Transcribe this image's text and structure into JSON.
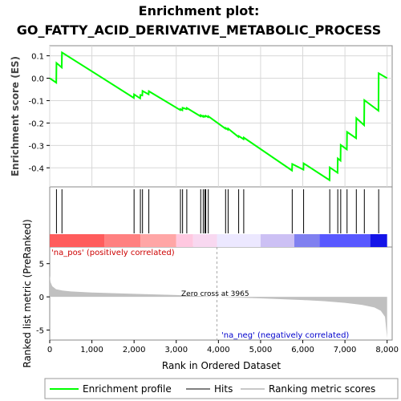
{
  "title_line1": "Enrichment plot:",
  "title_line2": "GO_FATTY_ACID_DERIVATIVE_METABOLIC_PROCESS",
  "chart_data": {
    "type": "line",
    "es_ylabel": "Enrichment score (ES)",
    "es_yticks": [
      0.1,
      0.0,
      -0.1,
      -0.2,
      -0.3,
      -0.4
    ],
    "es_ylim": [
      -0.485,
      0.145
    ],
    "xlim": [
      0,
      8120
    ],
    "xticks": [
      0,
      1000,
      2000,
      3000,
      4000,
      5000,
      6000,
      7000,
      8000
    ],
    "xlabel": "Rank in Ordered Dataset",
    "hits": [
      160,
      290,
      2000,
      2150,
      2200,
      2350,
      3100,
      3150,
      3250,
      3580,
      3640,
      3680,
      3700,
      3760,
      4170,
      4230,
      4480,
      4600,
      5750,
      6020,
      6640,
      6830,
      6900,
      7050,
      7270,
      7460,
      7800
    ],
    "enrichment_profile": [
      [
        0,
        0.0
      ],
      [
        155,
        -0.02
      ],
      [
        160,
        0.068
      ],
      [
        285,
        0.048
      ],
      [
        290,
        0.115
      ],
      [
        1995,
        -0.088
      ],
      [
        2000,
        -0.072
      ],
      [
        2145,
        -0.09
      ],
      [
        2150,
        -0.075
      ],
      [
        2195,
        -0.077
      ],
      [
        2200,
        -0.057
      ],
      [
        2345,
        -0.072
      ],
      [
        2350,
        -0.058
      ],
      [
        3095,
        -0.142
      ],
      [
        3100,
        -0.138
      ],
      [
        3145,
        -0.143
      ],
      [
        3150,
        -0.132
      ],
      [
        3245,
        -0.138
      ],
      [
        3250,
        -0.133
      ],
      [
        3575,
        -0.17
      ],
      [
        3580,
        -0.165
      ],
      [
        3635,
        -0.172
      ],
      [
        3640,
        -0.168
      ],
      [
        3675,
        -0.172
      ],
      [
        3680,
        -0.169
      ],
      [
        3695,
        -0.17
      ],
      [
        3700,
        -0.168
      ],
      [
        3755,
        -0.174
      ],
      [
        3760,
        -0.17
      ],
      [
        4165,
        -0.225
      ],
      [
        4170,
        -0.222
      ],
      [
        4225,
        -0.23
      ],
      [
        4230,
        -0.225
      ],
      [
        4475,
        -0.262
      ],
      [
        4480,
        -0.258
      ],
      [
        4595,
        -0.272
      ],
      [
        4600,
        -0.265
      ],
      [
        5745,
        -0.412
      ],
      [
        5750,
        -0.383
      ],
      [
        6015,
        -0.408
      ],
      [
        6020,
        -0.38
      ],
      [
        6635,
        -0.455
      ],
      [
        6640,
        -0.398
      ],
      [
        6825,
        -0.422
      ],
      [
        6830,
        -0.358
      ],
      [
        6895,
        -0.368
      ],
      [
        6900,
        -0.298
      ],
      [
        7045,
        -0.318
      ],
      [
        7050,
        -0.24
      ],
      [
        7265,
        -0.268
      ],
      [
        7270,
        -0.178
      ],
      [
        7455,
        -0.21
      ],
      [
        7460,
        -0.098
      ],
      [
        7795,
        -0.145
      ],
      [
        7800,
        0.022
      ],
      [
        8000,
        0.0
      ]
    ],
    "rank_ylabel": "Ranked list metric (PreRanked)",
    "rank_yticks": [
      5,
      0,
      -5
    ],
    "rank_ylim": [
      -6.5,
      7.5
    ],
    "rank_metric_profile": [
      [
        0,
        3.2
      ],
      [
        20,
        2.2
      ],
      [
        60,
        1.6
      ],
      [
        150,
        1.15
      ],
      [
        300,
        0.95
      ],
      [
        500,
        0.82
      ],
      [
        1000,
        0.65
      ],
      [
        2000,
        0.45
      ],
      [
        3000,
        0.28
      ],
      [
        3965,
        0.0
      ],
      [
        5000,
        -0.22
      ],
      [
        6000,
        -0.48
      ],
      [
        6500,
        -0.65
      ],
      [
        7000,
        -0.9
      ],
      [
        7400,
        -1.2
      ],
      [
        7700,
        -1.6
      ],
      [
        7850,
        -2.1
      ],
      [
        7950,
        -3.0
      ],
      [
        8000,
        -6.2
      ]
    ],
    "pos_label": "'na_pos' (positively correlated)",
    "neg_label": "'na_neg' (negatively correlated)",
    "zero_cross_label": "Zero cross at 3965",
    "zero_cross": 3965,
    "legend": [
      "Enrichment profile",
      "Hits",
      "Ranking metric scores"
    ],
    "colors": {
      "profile": "#00ff00",
      "hits": "#000000",
      "metric": "#c0c0c0",
      "pos": "#ff0000",
      "neg": "#0000ff",
      "zero_line": "#aaaaaa"
    },
    "heat_bands": [
      {
        "from": 0,
        "to": 1300,
        "color": "#ff5c5c"
      },
      {
        "from": 1300,
        "to": 2150,
        "color": "#ff8080"
      },
      {
        "from": 2150,
        "to": 3000,
        "color": "#ffa6a6"
      },
      {
        "from": 3000,
        "to": 3400,
        "color": "#ffc8e0"
      },
      {
        "from": 3400,
        "to": 3965,
        "color": "#f8d8f0"
      },
      {
        "from": 3965,
        "to": 5000,
        "color": "#ece8ff"
      },
      {
        "from": 5000,
        "to": 5800,
        "color": "#ccc0f4"
      },
      {
        "from": 5800,
        "to": 6400,
        "color": "#8080f0"
      },
      {
        "from": 6400,
        "to": 7600,
        "color": "#5858ff"
      },
      {
        "from": 7600,
        "to": 8000,
        "color": "#1414e8"
      }
    ]
  }
}
